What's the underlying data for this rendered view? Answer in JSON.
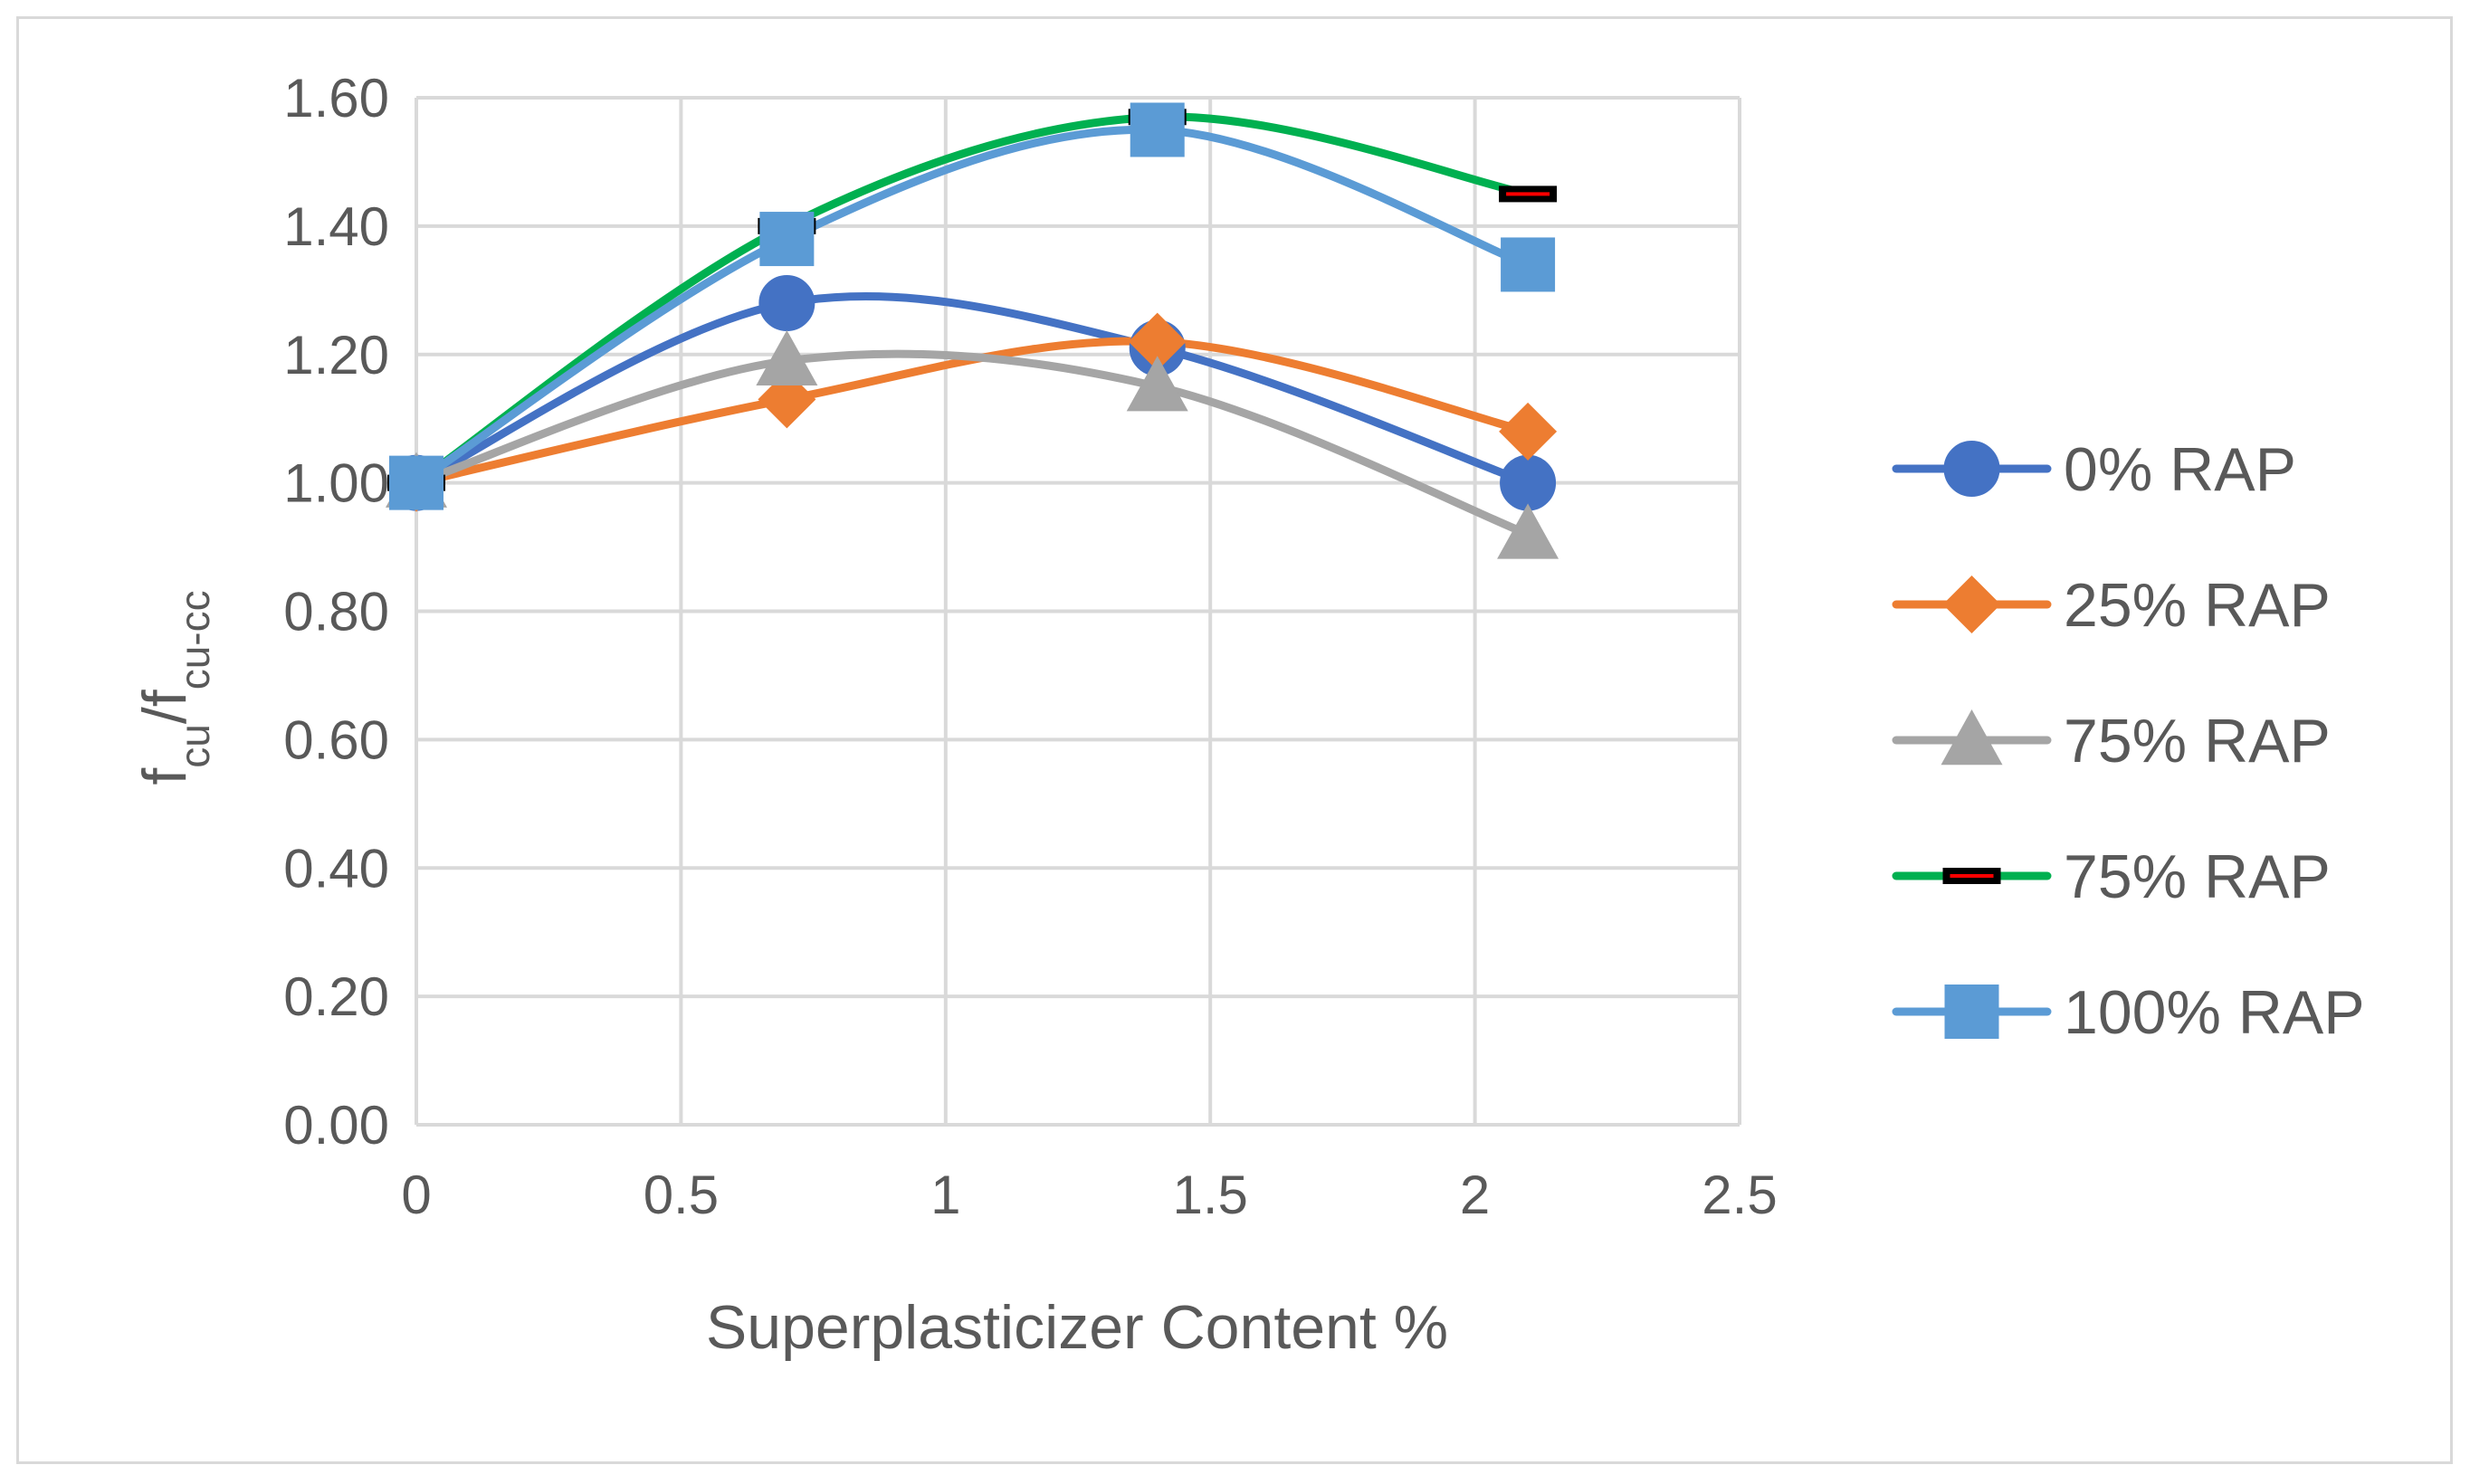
{
  "chart_data": {
    "type": "line",
    "title": "",
    "xlabel": "Superplasticizer Content %",
    "ylabel": {
      "main": "f",
      "sub1": "cu",
      "slash": "/f",
      "sub2": "cu-cc"
    },
    "xlim": [
      0,
      2.5
    ],
    "ylim": [
      0,
      1.6
    ],
    "x_ticks": [
      "0",
      "0.5",
      "1",
      "1.5",
      "2",
      "2.5"
    ],
    "y_ticks": [
      "0.00",
      "0.20",
      "0.40",
      "0.60",
      "0.80",
      "1.00",
      "1.20",
      "1.40",
      "1.60"
    ],
    "grid": true,
    "legend_position": "right",
    "smooth": true,
    "x": [
      0,
      0.7,
      1.4,
      2.1
    ],
    "series": [
      {
        "name": "0% RAP",
        "values": [
          1.0,
          1.28,
          1.21,
          1.0
        ],
        "color": "#4472c4",
        "marker": "circle"
      },
      {
        "name": "25% RAP",
        "values": [
          1.0,
          1.13,
          1.22,
          1.08
        ],
        "color": "#ed7d31",
        "marker": "diamond"
      },
      {
        "name": "75% RAP",
        "values": [
          1.0,
          1.19,
          1.15,
          0.92
        ],
        "color": "#a5a5a5",
        "marker": "triangle"
      },
      {
        "name": "75% RAP",
        "values": [
          1.0,
          1.4,
          1.57,
          1.45
        ],
        "color": "#00b050",
        "marker": "dash",
        "marker_color": "#000000",
        "marker_inner": "#ff0000"
      },
      {
        "name": "100% RAP",
        "values": [
          1.0,
          1.38,
          1.55,
          1.34
        ],
        "color": "#5b9bd5",
        "marker": "square"
      }
    ]
  }
}
